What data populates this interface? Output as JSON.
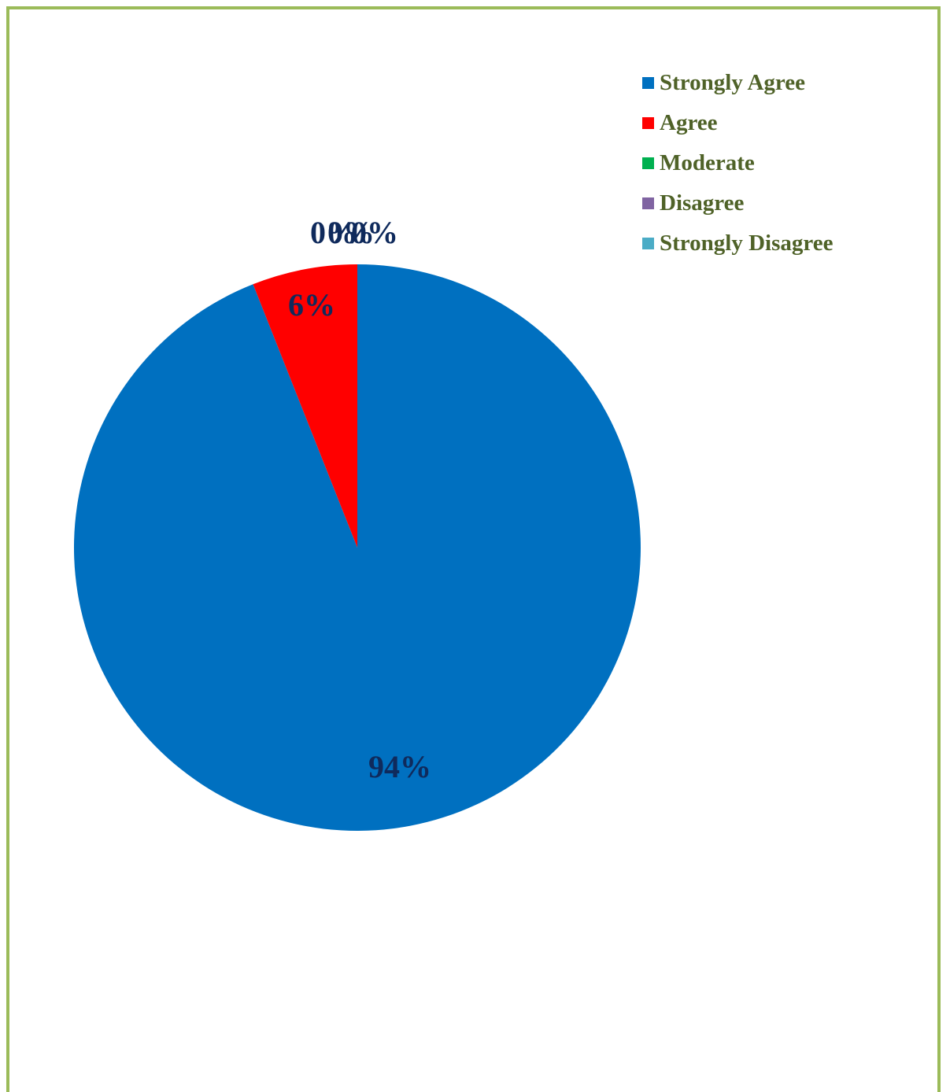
{
  "chart_data": {
    "type": "pie",
    "categories": [
      "Strongly Agree",
      "Agree",
      "Moderate",
      "Disagree",
      "Strongly Disagree"
    ],
    "values": [
      94,
      6,
      0,
      0,
      0
    ],
    "unit": "%",
    "data_labels": [
      "94%",
      "6%",
      "0%",
      "0%",
      "0%"
    ],
    "colors": [
      "#0070c0",
      "#ff0000",
      "#00b050",
      "#8064a2",
      "#4bacc6"
    ],
    "legend_position": "top-right",
    "title": ""
  },
  "frame": {
    "border_color": "#9bbb59"
  },
  "legend": {
    "items": [
      {
        "label": "Strongly Agree",
        "color": "#0070c0"
      },
      {
        "label": "Agree",
        "color": "#ff0000"
      },
      {
        "label": "Moderate",
        "color": "#00b050"
      },
      {
        "label": "Disagree",
        "color": "#8064a2"
      },
      {
        "label": "Strongly Disagree",
        "color": "#4bacc6"
      }
    ]
  }
}
